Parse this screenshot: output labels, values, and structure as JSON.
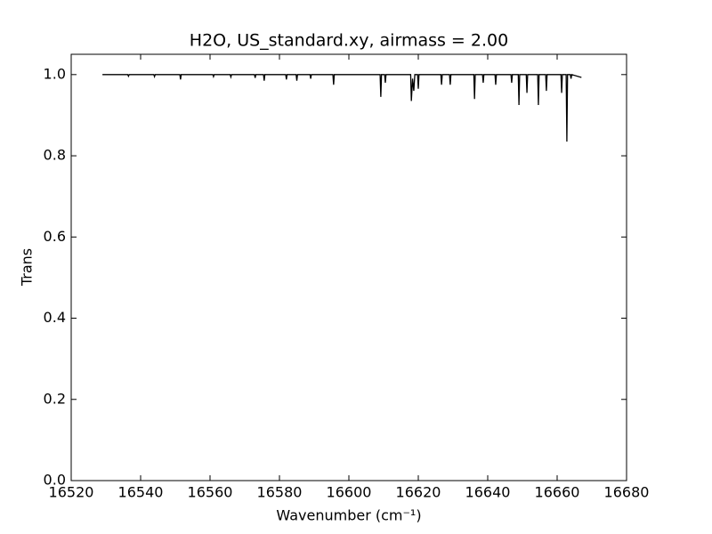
{
  "chart_data": {
    "type": "line",
    "title": "H2O, US_standard.xy, airmass = 2.00",
    "xlabel": "Wavenumber (cm⁻¹)",
    "ylabel": "Trans",
    "color": "#000000",
    "xlim": [
      16520,
      16680
    ],
    "xticks": [
      16520,
      16540,
      16560,
      16580,
      16600,
      16620,
      16640,
      16660,
      16680
    ],
    "ylim": [
      0,
      1.05
    ],
    "yticks": [
      {
        "value": 0,
        "label": "0.0"
      },
      {
        "value": 0.2,
        "label": "0.2"
      },
      {
        "value": 0.4,
        "label": "0.4"
      },
      {
        "value": 0.6,
        "label": "0.6"
      },
      {
        "value": 0.8,
        "label": "0.8"
      },
      {
        "value": 1,
        "label": "1.0"
      }
    ],
    "x": [
      16529,
      16536.3,
      16536.5,
      16536.7,
      16543.8,
      16544,
      16544.2,
      16551.3,
      16551.5,
      16551.7,
      16560.8,
      16561,
      16561.2,
      16565.8,
      16566,
      16566.2,
      16572.8,
      16573,
      16573.2,
      16575.4,
      16575.6,
      16575.8,
      16581.8,
      16582,
      16582.2,
      16584.8,
      16585,
      16585.2,
      16588.8,
      16589,
      16589.2,
      16595.4,
      16595.6,
      16595.8,
      16609,
      16609.2,
      16609.4,
      16610.3,
      16610.5,
      16610.7,
      16617.8,
      16618,
      16618.35,
      16618.7,
      16619,
      16619.8,
      16620,
      16620.2,
      16626.5,
      16626.7,
      16626.9,
      16629,
      16629.2,
      16629.4,
      16636,
      16636.2,
      16636.4,
      16638.5,
      16638.7,
      16638.9,
      16642.1,
      16642.3,
      16642.5,
      16646.7,
      16646.9,
      16647.1,
      16648.8,
      16649,
      16649.2,
      16651.1,
      16651.3,
      16651.5,
      16654.4,
      16654.6,
      16654.8,
      16656.7,
      16656.9,
      16657.1,
      16661.1,
      16661.3,
      16661.5,
      16662.6,
      16662.8,
      16663,
      16663.8,
      16664,
      16664.2,
      16667
    ],
    "values": [
      1,
      1,
      0.996,
      1,
      1,
      0.995,
      1,
      1,
      0.988,
      1,
      1,
      0.995,
      1,
      1,
      0.994,
      1,
      1,
      0.992,
      1,
      1,
      0.985,
      1,
      1,
      0.988,
      1,
      1,
      0.985,
      1,
      1,
      0.99,
      1,
      1,
      0.975,
      1,
      1,
      0.945,
      1,
      1,
      0.98,
      1,
      1,
      0.935,
      0.99,
      0.96,
      1,
      1,
      0.965,
      1,
      1,
      0.975,
      1,
      1,
      0.975,
      1,
      1,
      0.94,
      1,
      1,
      0.98,
      1,
      1,
      0.975,
      1,
      1,
      0.98,
      1,
      1,
      0.925,
      1,
      1,
      0.955,
      1,
      1,
      0.925,
      1,
      1,
      0.96,
      1,
      1,
      0.955,
      1,
      1,
      0.835,
      1,
      1,
      0.99,
      1,
      0.993
    ]
  }
}
